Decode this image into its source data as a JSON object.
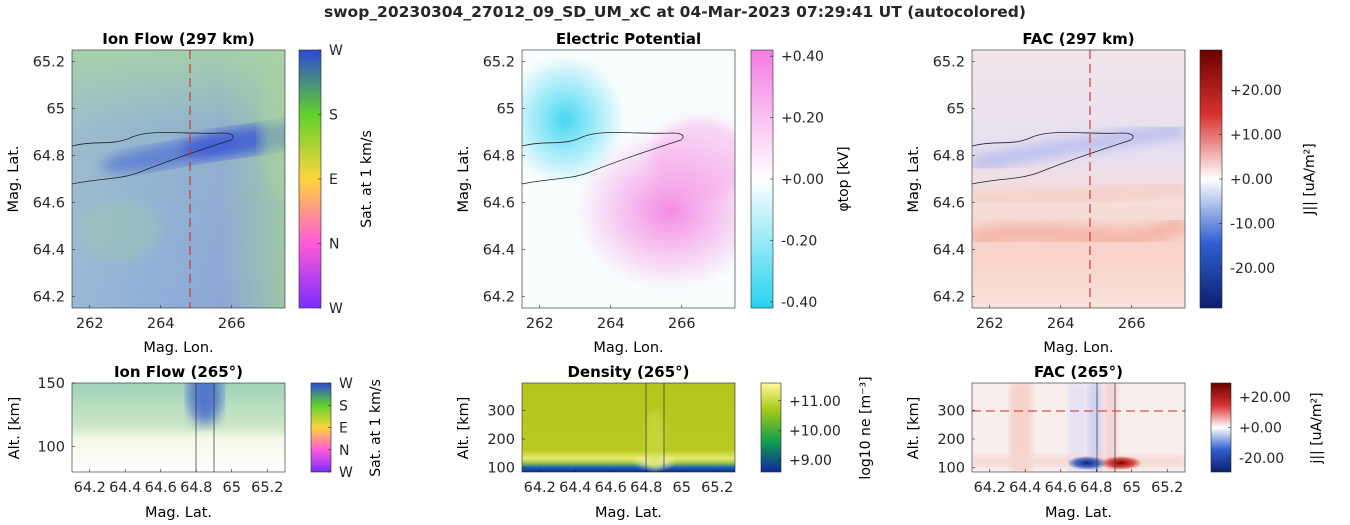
{
  "figure": {
    "title": "swop_20230304_27012_09_SD_UM_xC at 04-Mar-2023 07:29:41 UT (autocolored)"
  },
  "chart_data": [
    {
      "type": "heatmap",
      "title": "Ion Flow (297 km)",
      "xlabel": "Mag. Lon.",
      "ylabel": "Mag. Lat.",
      "xlim": [
        261.5,
        267.5
      ],
      "ylim": [
        64.15,
        65.25
      ],
      "xticks": [
        "262",
        "264",
        "266"
      ],
      "yticks": [
        "64.2",
        "64.4",
        "64.6",
        "64.8",
        "65",
        "65.2"
      ],
      "overlays": [
        "dashed red vertical line at Mag. Lon. 265",
        "black contour outline"
      ],
      "colorbar": {
        "label": "Sat. at 1 km/s",
        "ticks": [
          "W",
          "N",
          "E",
          "S",
          "W"
        ],
        "colors": [
          "#7b2cff",
          "#ff5ad9",
          "#ffd43b",
          "#5fd12a",
          "#2f49d6"
        ]
      }
    },
    {
      "type": "heatmap",
      "title": "Electric Potential",
      "xlabel": "Mag. Lon.",
      "ylabel": "Mag. Lat.",
      "xlim": [
        261.5,
        267.5
      ],
      "ylim": [
        64.15,
        65.25
      ],
      "xticks": [
        "262",
        "264",
        "266"
      ],
      "yticks": [
        "64.2",
        "64.4",
        "64.6",
        "64.8",
        "65",
        "65.2"
      ],
      "overlays": [
        "black contour outline"
      ],
      "colorbar": {
        "label": "φtop [kV]",
        "range": [
          -0.42,
          0.42
        ],
        "ticks": [
          "-0.40",
          "-0.20",
          "+0.00",
          "+0.20",
          "+0.40"
        ],
        "colors": [
          "#26d3ee",
          "#ffffff",
          "#f57ae3"
        ]
      }
    },
    {
      "type": "heatmap",
      "title": "FAC (297 km)",
      "xlabel": "Mag. Lon.",
      "ylabel": "Mag. Lat.",
      "xlim": [
        261.5,
        267.5
      ],
      "ylim": [
        64.15,
        65.25
      ],
      "xticks": [
        "262",
        "264",
        "266"
      ],
      "yticks": [
        "64.2",
        "64.4",
        "64.6",
        "64.8",
        "65",
        "65.2"
      ],
      "overlays": [
        "dashed red vertical line at Mag. Lon. 265",
        "black contour outline"
      ],
      "colorbar": {
        "label": "J|| [uA/m²]",
        "range": [
          -29,
          29
        ],
        "ticks": [
          "-20.00",
          "-10.00",
          "+0.00",
          "+10.00",
          "+20.00"
        ],
        "colors": [
          "#0c1f6e",
          "#2f5fd0",
          "#ffffff",
          "#d8322f",
          "#6a0000"
        ]
      }
    },
    {
      "type": "heatmap",
      "title": "Ion Flow (265°)",
      "xlabel": "Mag. Lat.",
      "ylabel": "Alt. [km]",
      "xlim": [
        64.1,
        65.3
      ],
      "ylim": [
        80,
        150
      ],
      "xticks": [
        "64.2",
        "64.4",
        "64.6",
        "64.8",
        "65",
        "65.2"
      ],
      "yticks": [
        "100",
        "150"
      ],
      "overlays": [
        "two thin black vertical lines near Mag. Lat. 64.77 and 64.87"
      ],
      "colorbar": {
        "label": "Sat. at 1 km/s",
        "ticks": [
          "W",
          "N",
          "E",
          "S",
          "W"
        ],
        "colors": [
          "#7b2cff",
          "#ff5ad9",
          "#ffd43b",
          "#5fd12a",
          "#2f49d6"
        ]
      }
    },
    {
      "type": "heatmap",
      "title": "Density (265°)",
      "xlabel": "Mag. Lat.",
      "ylabel": "Alt. [km]",
      "xlim": [
        64.1,
        65.3
      ],
      "ylim": [
        85,
        395
      ],
      "xticks": [
        "64.2",
        "64.4",
        "64.6",
        "64.8",
        "65",
        "65.2"
      ],
      "yticks": [
        "100",
        "200",
        "300"
      ],
      "overlays": [
        "two thin black vertical lines near Mag. Lat. 64.77 and 64.87"
      ],
      "colorbar": {
        "label": "log10 ne [m⁻³]",
        "range": [
          8.6,
          11.6
        ],
        "ticks": [
          "+9.00",
          "+10.00",
          "+11.00"
        ],
        "colors": [
          "#0a2a9c",
          "#14a04a",
          "#a7c81a",
          "#fff99a"
        ]
      }
    },
    {
      "type": "heatmap",
      "title": "FAC (265°)",
      "xlabel": "Mag. Lat.",
      "ylabel": "Alt. [km]",
      "xlim": [
        64.1,
        65.3
      ],
      "ylim": [
        85,
        395
      ],
      "xticks": [
        "64.2",
        "64.4",
        "64.6",
        "64.8",
        "65",
        "65.2"
      ],
      "yticks": [
        "100",
        "200",
        "300"
      ],
      "overlays": [
        "dashed red horizontal line at Alt. 297 km",
        "two thin black vertical lines near Mag. Lat. 64.77 and 64.87"
      ],
      "colorbar": {
        "label": "j|| [uA/m²]",
        "range": [
          -29,
          29
        ],
        "ticks": [
          "-20.00",
          "+0.00",
          "+20.00"
        ],
        "colors": [
          "#0c1f6e",
          "#2f5fd0",
          "#ffffff",
          "#d8322f",
          "#6a0000"
        ]
      }
    }
  ]
}
